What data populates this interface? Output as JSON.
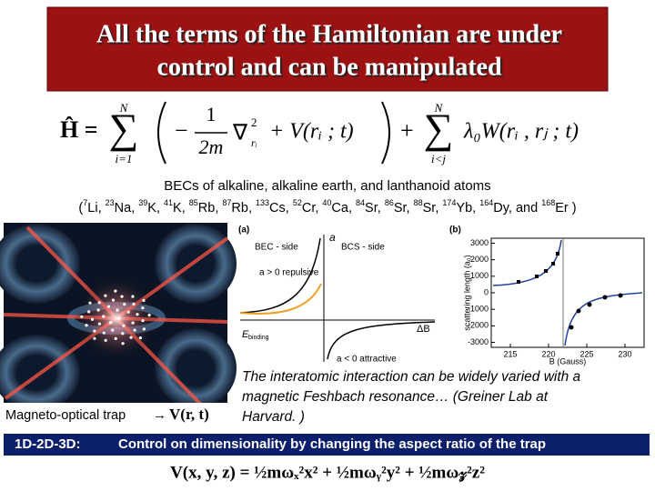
{
  "title_lines": [
    "All the terms of the Hamiltonian are under",
    "control and can be manipulated"
  ],
  "hamiltonian": {
    "lhs": "Ĥ =",
    "sum": "∑",
    "upper": "N",
    "lower1": "i=1",
    "lower2": "i<j",
    "minus": "−",
    "num": "1",
    "den": "2m",
    "nabla": "∇",
    "nabla_sup": "2",
    "nabla_sub": "rᵢ",
    "term1": "+ V(rᵢ ; t)",
    "plus": "+",
    "term2": "λ₀W(rᵢ , rⱼ ; t)"
  },
  "atoms": {
    "heading": "BECs of alkaline, alkaline earth, and lanthanoid atoms",
    "open": "(",
    "close": " )",
    "separator": ", ",
    "conjunction": ", and ",
    "items": [
      {
        "mass": "7",
        "symbol": "Li"
      },
      {
        "mass": "23",
        "symbol": "Na"
      },
      {
        "mass": "39",
        "symbol": "K"
      },
      {
        "mass": "41",
        "symbol": "K"
      },
      {
        "mass": "85",
        "symbol": "Rb"
      },
      {
        "mass": "87",
        "symbol": "Rb"
      },
      {
        "mass": "133",
        "symbol": "Cs"
      },
      {
        "mass": "52",
        "symbol": "Cr"
      },
      {
        "mass": "40",
        "symbol": "Ca"
      },
      {
        "mass": "84",
        "symbol": "Sr"
      },
      {
        "mass": "86",
        "symbol": "Sr"
      },
      {
        "mass": "88",
        "symbol": "Sr"
      },
      {
        "mass": "174",
        "symbol": "Yb"
      },
      {
        "mass": "164",
        "symbol": "Dy"
      },
      {
        "mass": "168",
        "symbol": "Er"
      }
    ]
  },
  "trap": {
    "label": "Magneto-optical trap",
    "arrow": "→",
    "formula": "V(r, t)"
  },
  "figure_a": {
    "panel": "(a)",
    "bec_side": "BEC - side",
    "bcs_side": "BCS - side",
    "axis_y": "a",
    "repulsive": "a > 0  repulsive",
    "binding": "E",
    "binding_sub": "binding",
    "attractive": "a < 0  attractive",
    "axis_x": "ΔB"
  },
  "figure_b": {
    "panel": "(b)",
    "ylabel": "scattering length (a₀)",
    "xlabel": "B (Gauss)",
    "xlim": [
      212.5,
      232.5
    ],
    "ylim": [
      -3300,
      3300
    ],
    "yticks": [
      3000,
      2000,
      1000,
      0,
      -1000,
      -2000,
      -3000
    ],
    "xticks": [
      215,
      220,
      225,
      230
    ]
  },
  "caption_lines": [
    "The interatomic interaction can be widely varied with a",
    "magnetic Feshbach resonance… (Greiner Lab at",
    "Harvard. )"
  ],
  "bottom_bar": {
    "label": "1D-2D-3D:",
    "text": "Control on dimensionality by changing the  aspect ratio of the trap"
  },
  "bottom_formula": "V(x, y, z) = ½mωₓ²x² + ½mωᵧ²y² + ½mω𝓏²z²"
}
